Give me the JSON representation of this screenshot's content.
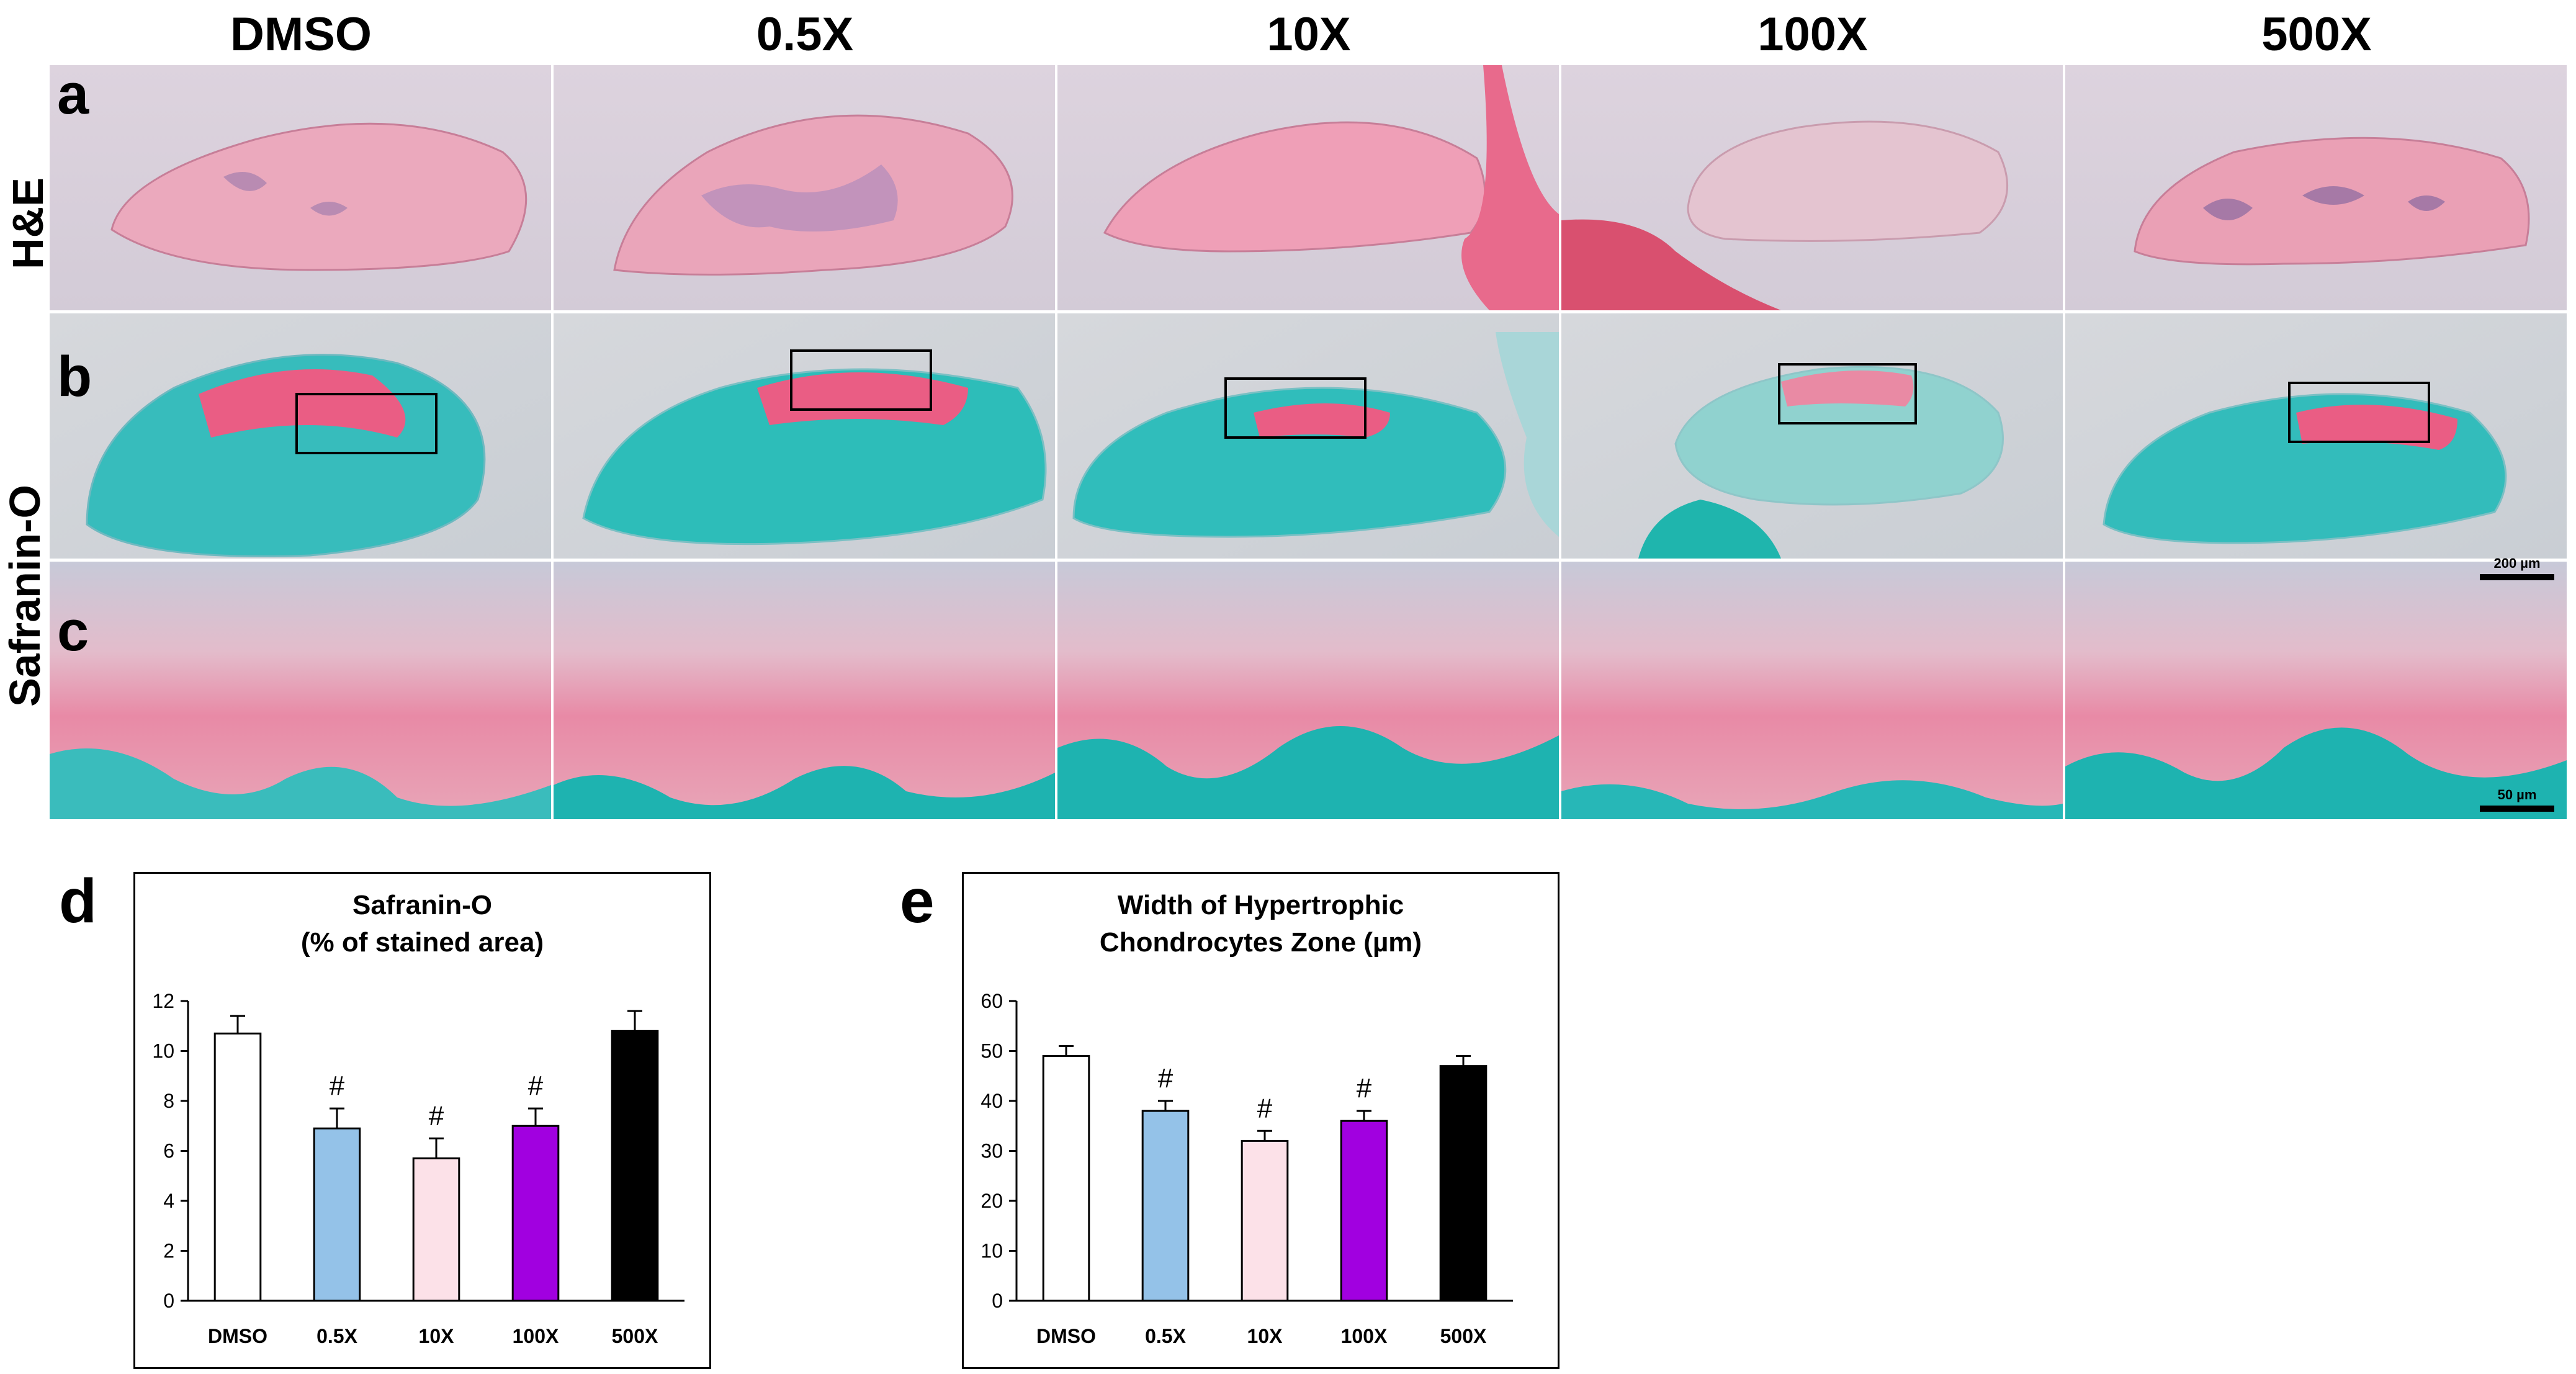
{
  "columns": [
    "DMSO",
    "0.5X",
    "10X",
    "100X",
    "500X"
  ],
  "rows": [
    {
      "letter": "a",
      "label": "H&E"
    },
    {
      "letter": "b",
      "label": ""
    },
    {
      "letter": "c",
      "label": ""
    }
  ],
  "row_label_safranin": "Safranin-O",
  "scalebars": {
    "b": "200 µm",
    "c": "50 µm"
  },
  "colors": {
    "he_pink": "#e8a3b8",
    "he_bg": "#d9d2dc",
    "safranin_red": "#e8507a",
    "fast_green": "#27b7b7",
    "stain_bg": "#cfd3d8"
  },
  "panel_d": {
    "letter": "d"
  },
  "panel_e": {
    "letter": "e"
  },
  "chart_data": [
    {
      "type": "bar",
      "title": "Safranin-O",
      "subtitle": "(% of stained area)",
      "categories": [
        "DMSO",
        "0.5X",
        "10X",
        "100X",
        "500X"
      ],
      "values": [
        10.7,
        6.9,
        5.7,
        7.0,
        10.8
      ],
      "errors": [
        0.7,
        0.8,
        0.8,
        0.7,
        0.8
      ],
      "significance": [
        "",
        "#",
        "#",
        "#",
        ""
      ],
      "bar_colors": [
        "#ffffff",
        "#94c2e8",
        "#fce1e8",
        "#a100e0",
        "#000000"
      ],
      "ylim": [
        0,
        12
      ],
      "yticks": [
        0,
        2,
        4,
        6,
        8,
        10,
        12
      ],
      "xlabel": "",
      "ylabel": "",
      "grid": false,
      "legend": "none"
    },
    {
      "type": "bar",
      "title": "Width of Hypertrophic",
      "subtitle": "Chondrocytes Zone (µm)",
      "categories": [
        "DMSO",
        "0.5X",
        "10X",
        "100X",
        "500X"
      ],
      "values": [
        49,
        38,
        32,
        36,
        47
      ],
      "errors": [
        2,
        2,
        2,
        2,
        2
      ],
      "significance": [
        "",
        "#",
        "#",
        "#",
        ""
      ],
      "bar_colors": [
        "#ffffff",
        "#94c2e8",
        "#fce1e8",
        "#a100e0",
        "#000000"
      ],
      "ylim": [
        0,
        60
      ],
      "yticks": [
        0,
        10,
        20,
        30,
        40,
        50,
        60
      ],
      "xlabel": "",
      "ylabel": "",
      "grid": false,
      "legend": "none"
    }
  ]
}
